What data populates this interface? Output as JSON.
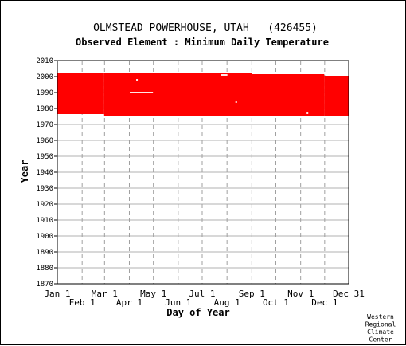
{
  "chart_data": {
    "type": "heatmap",
    "title": "OLMSTEAD POWERHOUSE, UTAH   (426455)",
    "subtitle": "Observed Element : Minimum Daily Temperature",
    "xlabel": "Day of Year",
    "ylabel": "Year",
    "ylim": [
      1870,
      2010
    ],
    "yticks": [
      1870,
      1880,
      1890,
      1900,
      1910,
      1920,
      1930,
      1940,
      1950,
      1960,
      1970,
      1980,
      1990,
      2000,
      2010
    ],
    "xlim": [
      1,
      365
    ],
    "xticks_top": [
      {
        "label": "Jan 1",
        "day": 1
      },
      {
        "label": "Mar 1",
        "day": 60
      },
      {
        "label": "May 1",
        "day": 121
      },
      {
        "label": "Jul 1",
        "day": 182
      },
      {
        "label": "Sep 1",
        "day": 244
      },
      {
        "label": "Nov 1",
        "day": 305
      },
      {
        "label": "Dec 31",
        "day": 365
      }
    ],
    "xticks_bottom": [
      {
        "label": "Feb 1",
        "day": 32
      },
      {
        "label": "Apr 1",
        "day": 91
      },
      {
        "label": "Jun 1",
        "day": 152
      },
      {
        "label": "Aug 1",
        "day": 213
      },
      {
        "label": "Oct 1",
        "day": 274
      },
      {
        "label": "Dec 1",
        "day": 335
      }
    ],
    "grid": true,
    "data_color": "#ff0000",
    "coverage": [
      {
        "day_start": 1,
        "day_end": 59,
        "year_start": 1977,
        "year_end": 2002
      },
      {
        "day_start": 60,
        "day_end": 244,
        "year_start": 1976,
        "year_end": 2002
      },
      {
        "day_start": 245,
        "day_end": 334,
        "year_start": 1976,
        "year_end": 2001
      },
      {
        "day_start": 335,
        "day_end": 365,
        "year_start": 1976,
        "year_end": 2000
      }
    ],
    "gaps": [
      {
        "day_start": 92,
        "day_end": 120,
        "year": 1990
      },
      {
        "day_start": 100,
        "day_end": 101,
        "year": 1998
      },
      {
        "day_start": 206,
        "day_end": 213,
        "year": 2001
      },
      {
        "day_start": 224,
        "day_end": 225,
        "year": 1984
      },
      {
        "day_start": 313,
        "day_end": 314,
        "year": 1977
      }
    ]
  },
  "credit": [
    "Western",
    "Regional",
    "Climate",
    "Center"
  ]
}
